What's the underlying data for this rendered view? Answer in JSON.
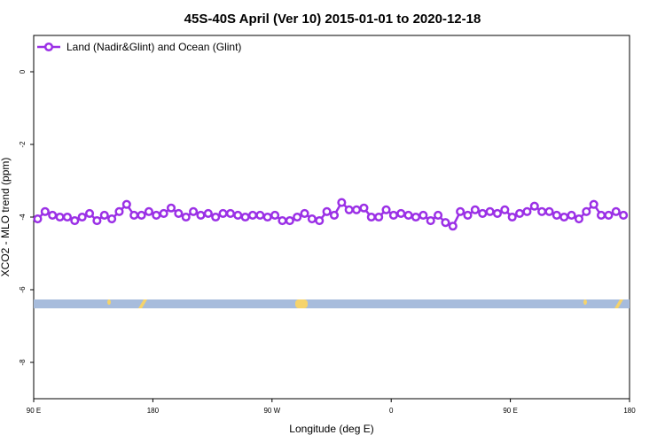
{
  "chart_data": {
    "type": "line",
    "title": "45S-40S April (Ver 10)   2015-01-01 to 2020-12-18",
    "x_label": "Longitude (deg E)",
    "y_label": "XCO2 - MLO trend (ppm)",
    "xlim": [
      90,
      540
    ],
    "ylim": [
      -9,
      1
    ],
    "xticks": [
      {
        "value": 90,
        "label": "90 E"
      },
      180,
      {
        "value": 270,
        "label": "90 W"
      },
      {
        "value": 360,
        "label": "0"
      },
      {
        "value": 450,
        "label": "90 E"
      },
      {
        "value": 540,
        "label": "180"
      }
    ],
    "yticks": [
      0,
      -2,
      -4,
      -6,
      -8
    ],
    "legend": "top-left",
    "series": [
      {
        "name": "Land (Nadir&Glint) and Ocean (Glint)",
        "color": "#9b30e6",
        "x": [
          93.0,
          98.6,
          104.2,
          109.8,
          115.4,
          121.0,
          126.6,
          132.2,
          137.8,
          143.4,
          149.0,
          154.6,
          160.2,
          165.8,
          171.4,
          177.0,
          182.6,
          188.2,
          193.8,
          199.4,
          205.0,
          210.6,
          216.2,
          221.8,
          227.4,
          233.0,
          238.6,
          244.2,
          249.8,
          255.4,
          261.0,
          266.6,
          272.2,
          277.8,
          283.4,
          289.0,
          294.6,
          300.2,
          305.8,
          311.4,
          317.0,
          322.6,
          328.2,
          333.8,
          339.4,
          345.0,
          350.6,
          356.2,
          361.8,
          367.4,
          373.0,
          378.6,
          384.2,
          389.8,
          395.4,
          401.0,
          406.6,
          412.2,
          417.8,
          423.4,
          429.0,
          434.6,
          440.2,
          445.8,
          451.4,
          457.0,
          462.6,
          468.2,
          473.8,
          479.4,
          485.0,
          490.6,
          496.2,
          501.8,
          507.4,
          513.0,
          518.6,
          524.2,
          529.8,
          535.4
        ],
        "values": [
          -4.05,
          -3.85,
          -3.95,
          -4.0,
          -4.0,
          -4.1,
          -4.0,
          -3.9,
          -4.1,
          -3.95,
          -4.05,
          -3.85,
          -3.65,
          -3.95,
          -3.95,
          -3.85,
          -3.95,
          -3.9,
          -3.75,
          -3.9,
          -4.0,
          -3.85,
          -3.95,
          -3.9,
          -4.0,
          -3.9,
          -3.9,
          -3.95,
          -4.0,
          -3.95,
          -3.95,
          -4.0,
          -3.95,
          -4.1,
          -4.1,
          -4.0,
          -3.9,
          -4.05,
          -4.1,
          -3.85,
          -3.95,
          -3.6,
          -3.8,
          -3.8,
          -3.75,
          -4.0,
          -4.0,
          -3.8,
          -3.95,
          -3.9,
          -3.95,
          -4.0,
          -3.95,
          -4.1,
          -3.95,
          -4.15,
          -4.25,
          -3.85,
          -3.95,
          -3.8,
          -3.9,
          -3.85,
          -3.9,
          -3.8,
          -4.0,
          -3.9,
          -3.85,
          -3.7,
          -3.85,
          -3.85,
          -3.95,
          -4.0,
          -3.95,
          -4.05,
          -3.85,
          -3.65,
          -3.95,
          -3.95,
          -3.85,
          -3.95
        ]
      }
    ]
  }
}
